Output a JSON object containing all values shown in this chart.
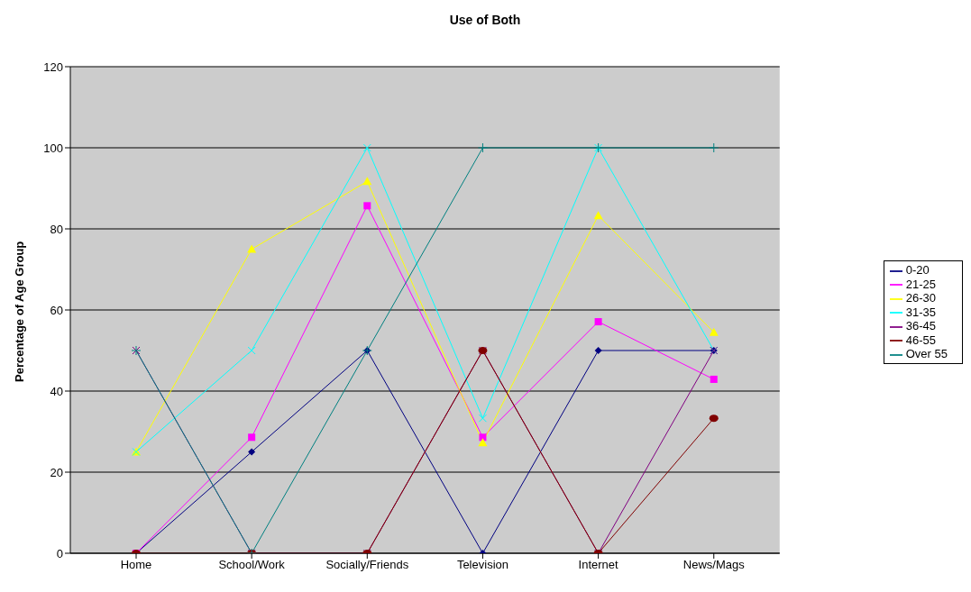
{
  "chart_data": {
    "type": "line",
    "title": "Use of Both",
    "ylabel": "Percentage of Age Group",
    "categories": [
      "Home",
      "School/Work",
      "Socially/Friends",
      "Television",
      "Internet",
      "News/Mags"
    ],
    "series": [
      {
        "name": "0-20",
        "color": "#000080",
        "marker": "diamond",
        "values": [
          0,
          25,
          50,
          0,
          50,
          50
        ]
      },
      {
        "name": "21-25",
        "color": "#ff00ff",
        "marker": "square",
        "values": [
          0,
          28.6,
          85.7,
          28.6,
          57.1,
          42.9
        ]
      },
      {
        "name": "26-30",
        "color": "#ffff00",
        "marker": "triangle",
        "values": [
          25,
          75,
          91.7,
          27.3,
          83.3,
          54.5
        ]
      },
      {
        "name": "31-35",
        "color": "#00ffff",
        "marker": "cross",
        "values": [
          25,
          50,
          100,
          33.3,
          100,
          50
        ]
      },
      {
        "name": "36-45",
        "color": "#800080",
        "marker": "cross",
        "values": [
          50,
          0,
          0,
          50,
          0,
          50
        ]
      },
      {
        "name": "46-55",
        "color": "#800000",
        "marker": "circle",
        "values": [
          0,
          0,
          0,
          50,
          0,
          33.3
        ]
      },
      {
        "name": "Over 55",
        "color": "#008080",
        "marker": "plus",
        "values": [
          50,
          0,
          50,
          100,
          100,
          100
        ]
      }
    ],
    "ylim": [
      0,
      120
    ],
    "yticks": [
      0,
      20,
      40,
      60,
      80,
      100,
      120
    ],
    "grid": "y",
    "legend": "right"
  }
}
